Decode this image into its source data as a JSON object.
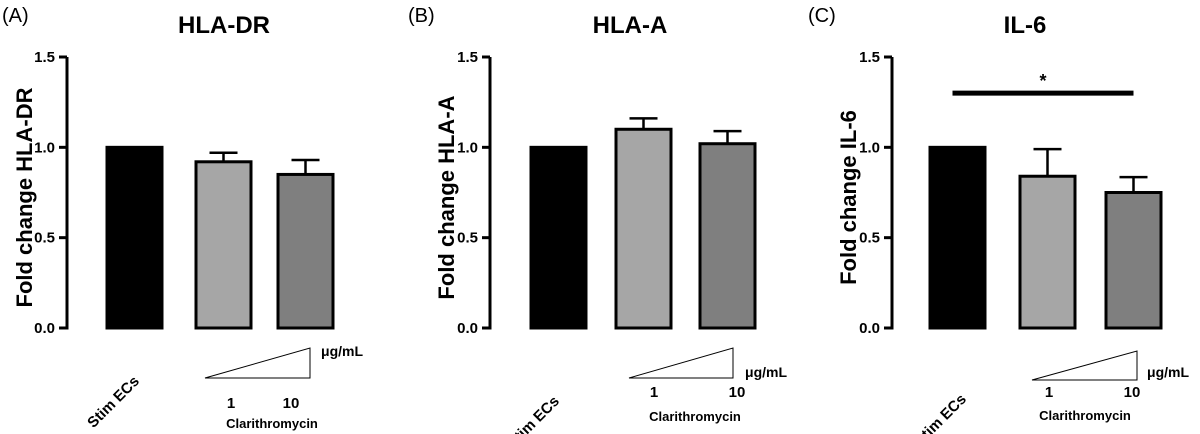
{
  "chart_data": [
    {
      "type": "bar",
      "panel": "(A)",
      "title": "HLA-DR",
      "ylabel": "Fold change HLA-DR",
      "ylim": [
        0,
        1.5
      ],
      "yticks": [
        "0.0",
        "0.5",
        "1.0",
        "1.5"
      ],
      "categories": [
        "Stim ECs",
        "1",
        "10"
      ],
      "values": [
        1.0,
        0.92,
        0.85
      ],
      "errors": [
        0,
        0.05,
        0.08
      ],
      "colors": [
        "#000000",
        "#a6a6a6",
        "#7f7f7f"
      ],
      "dose_unit": "μg/mL",
      "drug": "Clarithromycin"
    },
    {
      "type": "bar",
      "panel": "(B)",
      "title": "HLA-A",
      "ylabel": "Fold change HLA-A",
      "ylim": [
        0,
        1.5
      ],
      "yticks": [
        "0.0",
        "0.5",
        "1.0",
        "1.5"
      ],
      "categories": [
        "Stim ECs",
        "1",
        "10"
      ],
      "values": [
        1.0,
        1.1,
        1.02
      ],
      "errors": [
        0,
        0.06,
        0.07
      ],
      "colors": [
        "#000000",
        "#a6a6a6",
        "#7f7f7f"
      ],
      "dose_unit": "μg/mL",
      "drug": "Clarithromycin"
    },
    {
      "type": "bar",
      "panel": "(C)",
      "title": "IL-6",
      "ylabel": "Fold change IL-6",
      "ylim": [
        0,
        1.5
      ],
      "yticks": [
        "0.0",
        "0.5",
        "1.0",
        "1.5"
      ],
      "categories": [
        "Stim ECs",
        "1",
        "10"
      ],
      "values": [
        1.0,
        0.84,
        0.75
      ],
      "errors": [
        0,
        0.15,
        0.085
      ],
      "colors": [
        "#000000",
        "#a6a6a6",
        "#7f7f7f"
      ],
      "dose_unit": "μg/mL",
      "drug": "Clarithromycin",
      "significance": {
        "from": 0,
        "to": 2,
        "label": "*",
        "y": 1.3
      }
    }
  ]
}
